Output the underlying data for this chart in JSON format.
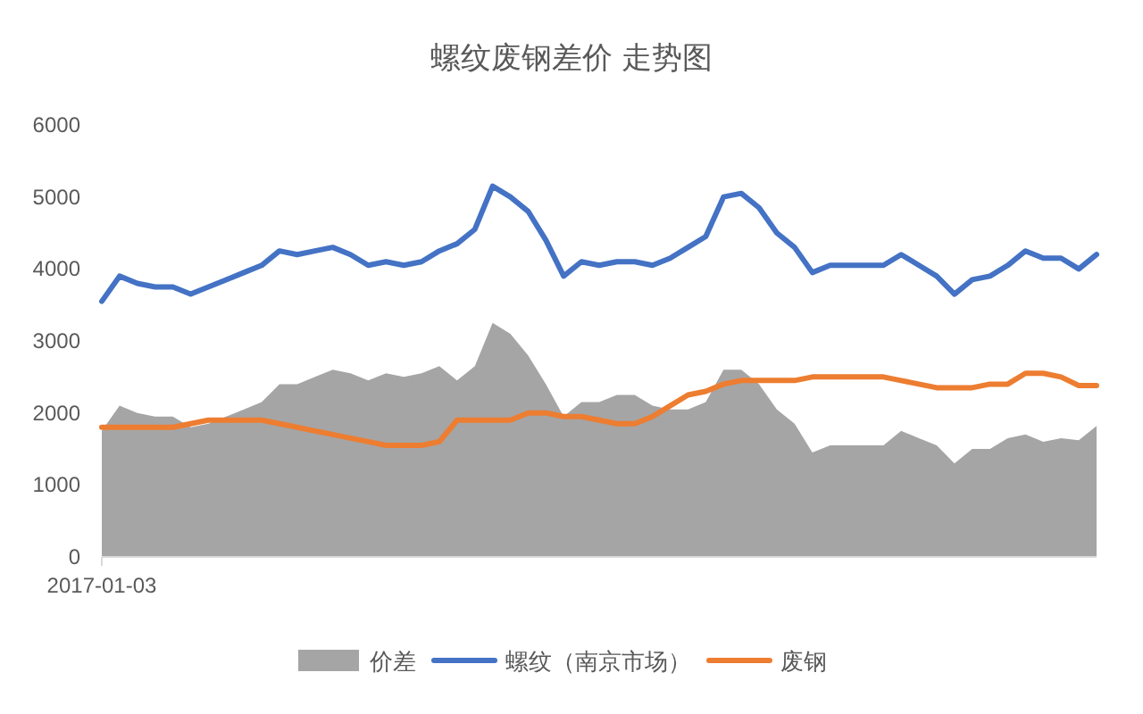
{
  "chart_data": {
    "type": "line",
    "title": "螺纹废钢差价 走势图",
    "categories": [
      "2017-01-03",
      null,
      null,
      null,
      null,
      null,
      null,
      null,
      null,
      null,
      null,
      null,
      null,
      null,
      null,
      null,
      null,
      null,
      null,
      null,
      null,
      null,
      null,
      null,
      null,
      null,
      null,
      null,
      null,
      null,
      null,
      null,
      null,
      null,
      null,
      null,
      null,
      null,
      null,
      null,
      null,
      null,
      null,
      null,
      null,
      null,
      null,
      null,
      null,
      null,
      null,
      null,
      null,
      null,
      null,
      null,
      null
    ],
    "series": [
      {
        "name": "价差",
        "type": "area",
        "color": "#a5a5a5",
        "values": [
          1750,
          2100,
          2000,
          1950,
          1950,
          1800,
          1850,
          1950,
          2050,
          2150,
          2400,
          2400,
          2500,
          2600,
          2550,
          2450,
          2550,
          2500,
          2550,
          2650,
          2450,
          2650,
          3250,
          3100,
          2800,
          2400,
          1950,
          2150,
          2150,
          2250,
          2250,
          2100,
          2050,
          2050,
          2150,
          2600,
          2600,
          2400,
          2050,
          1850,
          1450,
          1550,
          1550,
          1550,
          1550,
          1750,
          1650,
          1550,
          1300,
          1500,
          1500,
          1650,
          1700,
          1600,
          1650,
          1620,
          1820
        ]
      },
      {
        "name": "螺纹（南京市场）",
        "color": "#4472c4",
        "values": [
          3550,
          3900,
          3800,
          3750,
          3750,
          3650,
          3750,
          3850,
          3950,
          4050,
          4250,
          4200,
          4250,
          4300,
          4200,
          4050,
          4100,
          4050,
          4100,
          4250,
          4350,
          4550,
          5150,
          5000,
          4800,
          4400,
          3900,
          4100,
          4050,
          4100,
          4100,
          4050,
          4150,
          4300,
          4450,
          5000,
          5050,
          4850,
          4500,
          4300,
          3950,
          4050,
          4050,
          4050,
          4050,
          4200,
          4050,
          3900,
          3650,
          3850,
          3900,
          4050,
          4250,
          4150,
          4150,
          4000,
          4200
        ]
      },
      {
        "name": "废钢",
        "color": "#ed7d31",
        "values": [
          1800,
          1800,
          1800,
          1800,
          1800,
          1850,
          1900,
          1900,
          1900,
          1900,
          1850,
          1800,
          1750,
          1700,
          1650,
          1600,
          1550,
          1550,
          1550,
          1600,
          1900,
          1900,
          1900,
          1900,
          2000,
          2000,
          1950,
          1950,
          1900,
          1850,
          1850,
          1950,
          2100,
          2250,
          2300,
          2400,
          2450,
          2450,
          2450,
          2450,
          2500,
          2500,
          2500,
          2500,
          2500,
          2450,
          2400,
          2350,
          2350,
          2350,
          2400,
          2400,
          2550,
          2550,
          2500,
          2380,
          2380
        ]
      }
    ],
    "ylim": [
      0,
      6000
    ],
    "yticks": [
      0,
      1000,
      2000,
      3000,
      4000,
      5000,
      6000
    ],
    "legend": "bottom"
  }
}
